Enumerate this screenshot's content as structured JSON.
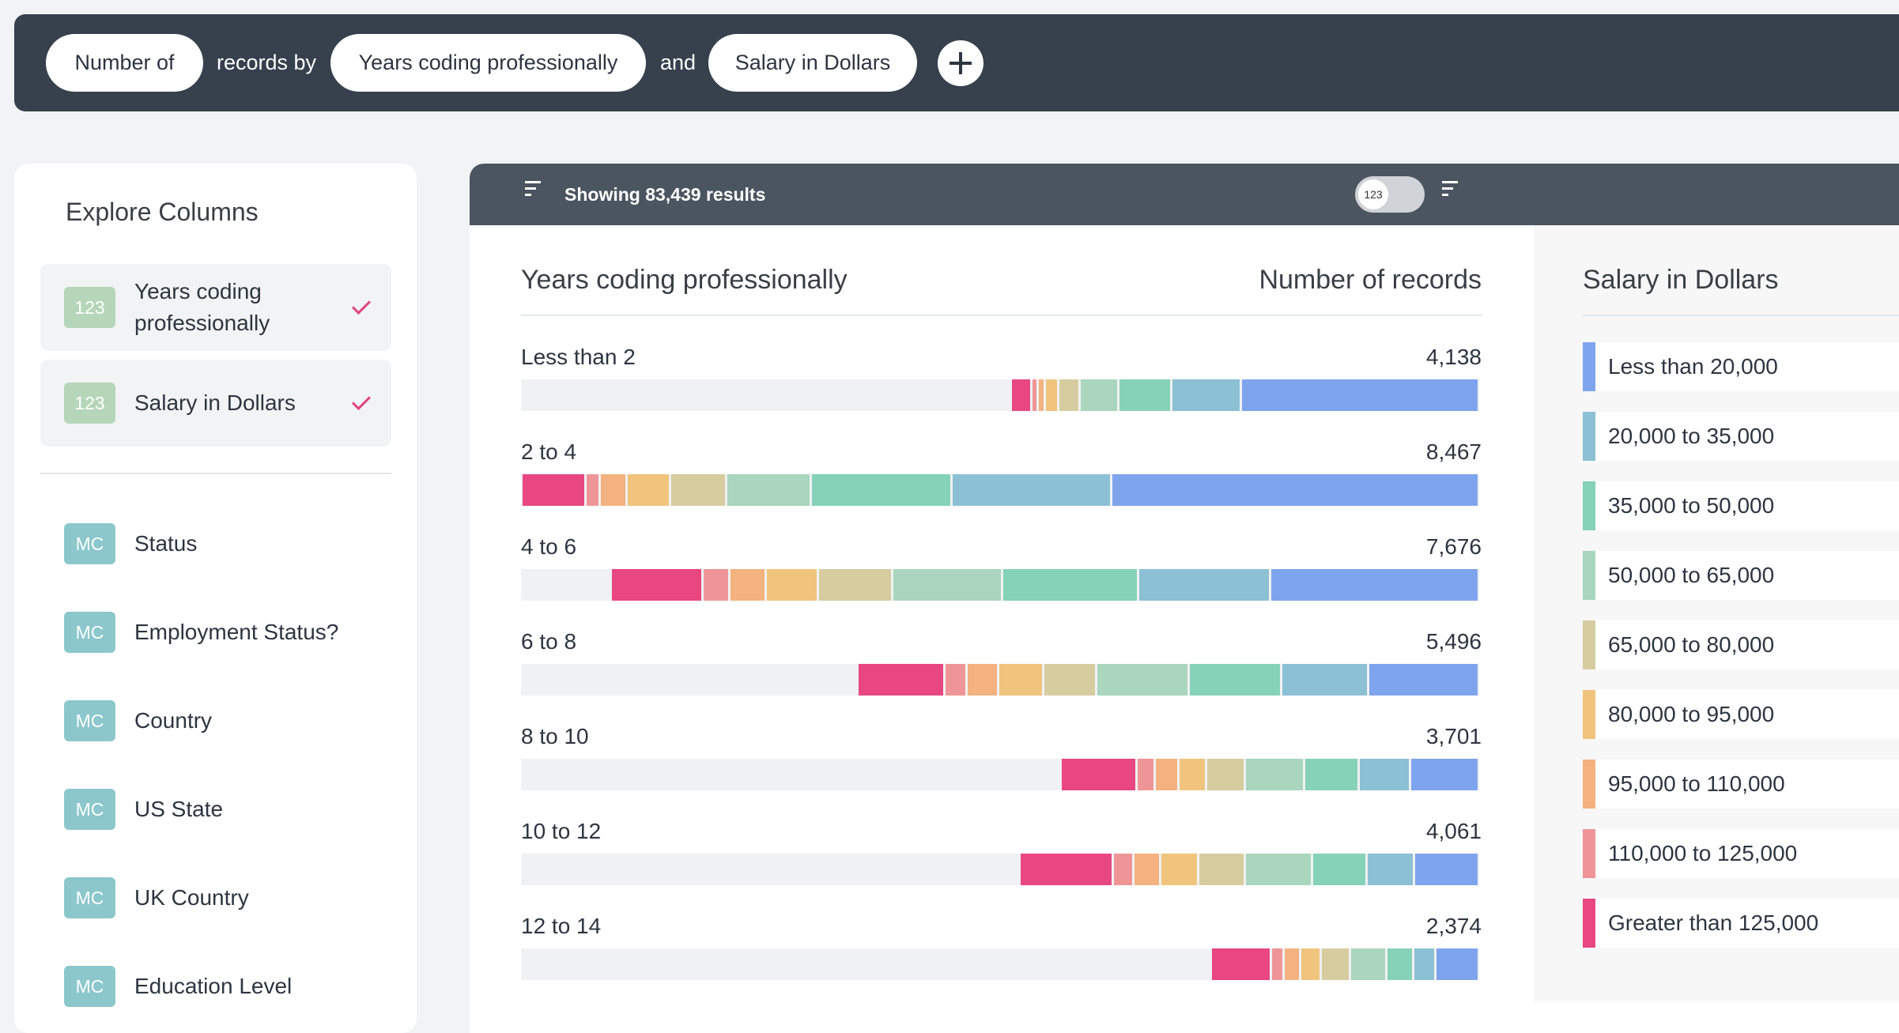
{
  "query_bar": {
    "metric": "Number of",
    "connector1": "records by",
    "dimension1": "Years coding professionally",
    "connector2": "and",
    "dimension2": "Salary in Dollars"
  },
  "sidebar": {
    "title": "Explore Columns",
    "selected": [
      {
        "badge": "123",
        "label": "Years coding professionally"
      },
      {
        "badge": "123",
        "label": "Salary in Dollars"
      }
    ],
    "columns": [
      {
        "badge": "MC",
        "label": "Status"
      },
      {
        "badge": "MC",
        "label": "Employment Status?"
      },
      {
        "badge": "MC",
        "label": "Country"
      },
      {
        "badge": "MC",
        "label": "US State"
      },
      {
        "badge": "MC",
        "label": "UK Country"
      },
      {
        "badge": "MC",
        "label": "Education Level"
      }
    ]
  },
  "results_header": {
    "text": "Showing 83,439 results",
    "toggle": "123"
  },
  "chart_data": {
    "type": "stacked-bar",
    "title": "Years coding professionally",
    "value_title": "Number of records",
    "legend_title": "Salary in Dollars",
    "categories": [
      "Less than 2",
      "2 to 4",
      "4 to 6",
      "6 to 8",
      "8 to 10",
      "10 to 12",
      "12 to 14"
    ],
    "totals": [
      4138,
      8467,
      7676,
      5496,
      3701,
      4061,
      2374
    ],
    "total_labels": [
      "4,138",
      "8,467",
      "7,676",
      "5,496",
      "3,701",
      "4,061",
      "2,374"
    ],
    "series": [
      {
        "name": "Less than 20,000",
        "color": "#7fa4ee",
        "values": [
          2108,
          3249,
          1845,
          981,
          614,
          578,
          391
        ]
      },
      {
        "name": "20,000 to 35,000",
        "color": "#8cc0d4",
        "values": [
          610,
          1415,
          1168,
          772,
          450,
          418,
          193
        ]
      },
      {
        "name": "35,000 to 50,000",
        "color": "#85d2b8",
        "values": [
          470,
          1243,
          1200,
          815,
          482,
          482,
          236
        ]
      },
      {
        "name": "50,000 to 65,000",
        "color": "#a9d6bc",
        "values": [
          340,
          750,
          975,
          815,
          525,
          590,
          322
        ]
      },
      {
        "name": "65,000 to 80,000",
        "color": "#d6cc9f",
        "values": [
          190,
          493,
          654,
          472,
          343,
          418,
          257
        ]
      },
      {
        "name": "80,000 to 95,000",
        "color": "#f0c47d",
        "values": [
          120,
          386,
          461,
          397,
          247,
          332,
          182
        ]
      },
      {
        "name": "95,000 to 110,000",
        "color": "#f3b27f",
        "values": [
          65,
          236,
          322,
          279,
          204,
          236,
          150
        ]
      },
      {
        "name": "110,000 to 125,000",
        "color": "#ef9597",
        "values": [
          55,
          128,
          236,
          193,
          161,
          182,
          107
        ]
      },
      {
        "name": "Greater than 125,000",
        "color": "#e8477f",
        "values": [
          180,
          567,
          815,
          772,
          675,
          825,
          536
        ]
      }
    ]
  }
}
